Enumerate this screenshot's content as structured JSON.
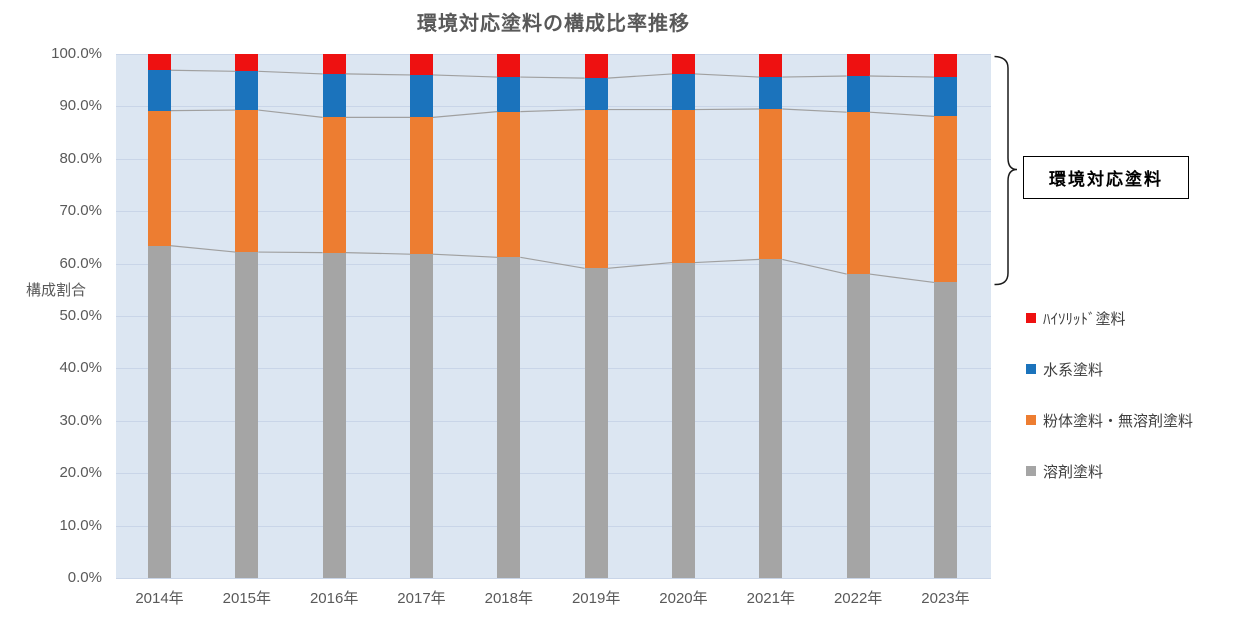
{
  "chart_data": {
    "type": "bar",
    "stacked": true,
    "percent_stacked": true,
    "title": "環境対応塗料の構成比率推移",
    "ylabel": "構成割合",
    "xlabel": "",
    "ylim": [
      0,
      100
    ],
    "ytick_step": 10,
    "ytick_format": "one-decimal-percent",
    "grid": true,
    "categories": [
      "2014年",
      "2015年",
      "2016年",
      "2017年",
      "2018年",
      "2019年",
      "2020年",
      "2021年",
      "2022年",
      "2023年"
    ],
    "series": [
      {
        "name": "溶剤塗料",
        "color": "#A5A5A5",
        "stack_position": "bottom",
        "values": [
          63.4,
          62.2,
          62.1,
          61.8,
          61.2,
          59.1,
          60.2,
          60.8,
          58.0,
          56.4
        ]
      },
      {
        "name": "粉体塗料・無溶剤塗料",
        "color": "#ED7D31",
        "stack_position": "second",
        "values": [
          25.8,
          27.1,
          25.8,
          26.1,
          27.8,
          30.3,
          29.2,
          28.7,
          30.9,
          31.7
        ]
      },
      {
        "name": "水系塗料",
        "color": "#1B73BC",
        "stack_position": "third",
        "values": [
          7.7,
          7.4,
          8.3,
          8.1,
          6.6,
          6.0,
          6.8,
          6.1,
          6.9,
          7.5
        ]
      },
      {
        "name": "ﾊｲｿﾘｯﾄﾞ塗料",
        "color": "#EE1111",
        "stack_position": "top",
        "values": [
          3.1,
          3.3,
          3.8,
          4.0,
          4.4,
          4.6,
          3.8,
          4.4,
          4.2,
          4.4
        ]
      }
    ],
    "legend": {
      "position": "right",
      "order_top_to_bottom": [
        "ﾊｲｿﾘｯﾄﾞ塗料",
        "水系塗料",
        "粉体塗料・無溶剤塗料",
        "溶剤塗料"
      ]
    },
    "annotation": {
      "label": "環境対応塗料",
      "bracket_covers_series": [
        "粉体塗料・無溶剤塗料",
        "水系塗料",
        "ﾊｲｿﾘｯﾄﾞ塗料"
      ]
    },
    "series_connector_lines": true
  },
  "colors": {
    "plot_background": "#DCE6F2",
    "gridline": "#C9D5E8",
    "connector_line": "#A0A0A0",
    "axis_text": "#595959",
    "annotation_border": "#000000"
  }
}
